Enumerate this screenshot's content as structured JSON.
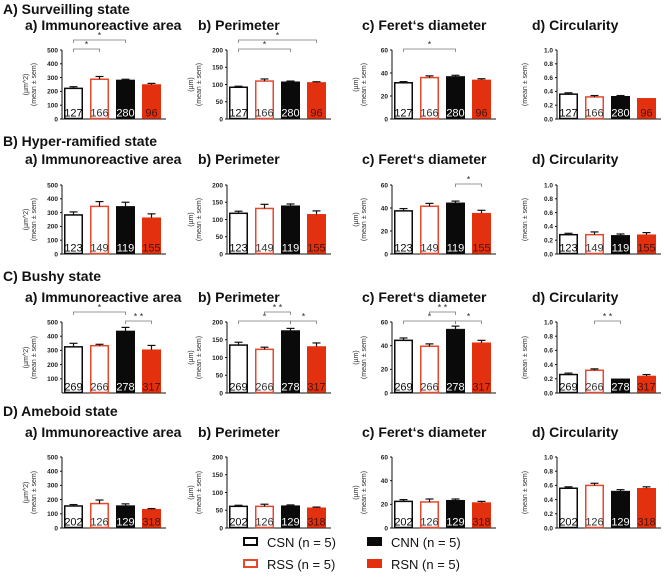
{
  "colors": {
    "black": "#0a0a0a",
    "red": "#e3300f",
    "red_stroke": "#e8472c",
    "white": "#ffffff"
  },
  "groups": [
    "CSN",
    "RSS",
    "CNN",
    "RSN"
  ],
  "legend": [
    {
      "label": "CSN (n = 5)",
      "group": "CSN"
    },
    {
      "label": "RSS (n = 5)",
      "group": "RSS"
    },
    {
      "label": "CNN (n = 5)",
      "group": "CNN"
    },
    {
      "label": "RSN (n = 5)",
      "group": "RSN"
    }
  ],
  "sections": [
    {
      "title": "A) Surveilling state"
    },
    {
      "title": "B) Hyper-ramified state"
    },
    {
      "title": "C) Bushy state"
    },
    {
      "title": "D) Ameboid state"
    }
  ],
  "chart_data": [
    {
      "type": "bar",
      "section": 0,
      "title": "a) Immunoreactive area",
      "ylabel": [
        "(µm^2)",
        "(mean ± sem)"
      ],
      "ylim": [
        0,
        500
      ],
      "ticks": [
        "0",
        "100",
        "200",
        "300",
        "400",
        "500"
      ],
      "values": [
        222,
        288,
        283,
        250
      ],
      "errors": [
        12,
        20,
        5,
        8
      ],
      "n_labels": [
        "127",
        "166",
        "280",
        "96"
      ],
      "significance": [
        {
          "from": 0,
          "to": 1,
          "label": "*",
          "level": 0
        },
        {
          "from": 0,
          "to": 2,
          "label": "*",
          "level": 1
        }
      ]
    },
    {
      "type": "bar",
      "section": 0,
      "title": "b) Perimeter",
      "ylabel": [
        "(µm)",
        "(mean ± sem)"
      ],
      "ylim": [
        0,
        200
      ],
      "ticks": [
        "0",
        "50",
        "100",
        "150",
        "200"
      ],
      "values": [
        92,
        110,
        108,
        106
      ],
      "errors": [
        3,
        6,
        2,
        2
      ],
      "n_labels": [
        "127",
        "166",
        "280",
        "96"
      ],
      "significance": [
        {
          "from": 0,
          "to": 2,
          "label": "*",
          "level": 0
        },
        {
          "from": 0,
          "to": 3,
          "label": "*",
          "level": 1
        }
      ]
    },
    {
      "type": "bar",
      "section": 0,
      "title": "c) Feret‘s diameter",
      "ylabel": [
        "(µm)",
        "(mean ± sem)"
      ],
      "ylim": [
        0,
        60
      ],
      "ticks": [
        "0",
        "20",
        "40",
        "60"
      ],
      "values": [
        31.5,
        36,
        37,
        34
      ],
      "errors": [
        1,
        1.5,
        1,
        1
      ],
      "n_labels": [
        "127",
        "166",
        "280",
        "96"
      ],
      "significance": [
        {
          "from": 0,
          "to": 2,
          "label": "*",
          "level": 0
        }
      ]
    },
    {
      "type": "bar",
      "section": 0,
      "title": "d) Circularity",
      "ylabel": [
        "(mean ± sem)"
      ],
      "ylim": [
        0,
        1
      ],
      "ticks": [
        "0.0",
        "0.2",
        "0.4",
        "0.6",
        "0.8",
        "1.0"
      ],
      "values": [
        0.36,
        0.32,
        0.33,
        0.3
      ],
      "errors": [
        0.02,
        0.02,
        0.01,
        0
      ],
      "n_labels": [
        "127",
        "166",
        "280",
        "96"
      ],
      "significance": []
    },
    {
      "type": "bar",
      "section": 1,
      "title": "a) Immunoreactive area",
      "ylabel": [
        "(µm^2)",
        "(mean ± sem)"
      ],
      "ylim": [
        0,
        500
      ],
      "ticks": [
        "0",
        "100",
        "200",
        "300",
        "400",
        "500"
      ],
      "values": [
        283,
        345,
        345,
        263
      ],
      "errors": [
        22,
        35,
        30,
        28
      ],
      "n_labels": [
        "123",
        "149",
        "119",
        "155"
      ],
      "significance": []
    },
    {
      "type": "bar",
      "section": 1,
      "title": "b) Perimeter",
      "ylabel": [
        "(µm)",
        "(mean ± sem)"
      ],
      "ylim": [
        0,
        200
      ],
      "ticks": [
        "0",
        "50",
        "100",
        "150",
        "200"
      ],
      "values": [
        118,
        132,
        140,
        115
      ],
      "errors": [
        6,
        12,
        5,
        10
      ],
      "n_labels": [
        "123",
        "149",
        "119",
        "155"
      ],
      "significance": []
    },
    {
      "type": "bar",
      "section": 1,
      "title": "c) Feret‘s diameter",
      "ylabel": [
        "(µm)",
        "(mean ± sem)"
      ],
      "ylim": [
        0,
        60
      ],
      "ticks": [
        "0",
        "20",
        "40",
        "60"
      ],
      "values": [
        37.5,
        41.5,
        44.5,
        35.5
      ],
      "errors": [
        2,
        2.5,
        1.5,
        2.5
      ],
      "n_labels": [
        "123",
        "149",
        "119",
        "155"
      ],
      "significance": [
        {
          "from": 2,
          "to": 3,
          "label": "*",
          "level": 0
        }
      ]
    },
    {
      "type": "bar",
      "section": 1,
      "title": "d) Circularity",
      "ylabel": [
        "(mean ± sem)"
      ],
      "ylim": [
        0,
        1
      ],
      "ticks": [
        "0.0",
        "0.2",
        "0.4",
        "0.6",
        "0.8",
        "1.0"
      ],
      "values": [
        0.28,
        0.28,
        0.27,
        0.28
      ],
      "errors": [
        0.02,
        0.04,
        0.02,
        0.03
      ],
      "n_labels": [
        "123",
        "149",
        "119",
        "155"
      ],
      "significance": []
    },
    {
      "type": "bar",
      "section": 2,
      "title": "a) Immunoreactive area",
      "ylabel": [
        "(µm^2)",
        "(mean ± sem)"
      ],
      "ylim": [
        0,
        500
      ],
      "ticks": [
        "100",
        "200",
        "300",
        "400",
        "500"
      ],
      "values": [
        325,
        333,
        437,
        305
      ],
      "errors": [
        25,
        10,
        25,
        30
      ],
      "n_labels": [
        "269",
        "266",
        "278",
        "317"
      ],
      "significance": [
        {
          "from": 0,
          "to": 2,
          "label": "*",
          "level": 1
        },
        {
          "from": 2,
          "to": 3,
          "label": "* *",
          "level": 0
        }
      ]
    },
    {
      "type": "bar",
      "section": 2,
      "title": "b) Perimeter",
      "ylabel": [
        "(µm)",
        "(mean ± sem)"
      ],
      "ylim": [
        0,
        200
      ],
      "ticks": [
        "0",
        "50",
        "100",
        "150",
        "200"
      ],
      "values": [
        135,
        123,
        176,
        131
      ],
      "errors": [
        8,
        6,
        6,
        10
      ],
      "n_labels": [
        "269",
        "266",
        "278",
        "317"
      ],
      "significance": [
        {
          "from": 0,
          "to": 2,
          "label": "*",
          "level": 0
        },
        {
          "from": 1,
          "to": 2,
          "label": "* *",
          "level": 1
        },
        {
          "from": 2,
          "to": 3,
          "label": "*",
          "level": 0
        }
      ]
    },
    {
      "type": "bar",
      "section": 2,
      "title": "c) Feret‘s diameter",
      "ylabel": [
        "(µm)",
        "(mean ± sem)"
      ],
      "ylim": [
        0,
        60
      ],
      "ticks": [
        "0",
        "20",
        "40",
        "60"
      ],
      "values": [
        44.5,
        39.5,
        54,
        42.5
      ],
      "errors": [
        2,
        2,
        2.5,
        2
      ],
      "n_labels": [
        "269",
        "266",
        "278",
        "317"
      ],
      "significance": [
        {
          "from": 0,
          "to": 2,
          "label": "*",
          "level": 0
        },
        {
          "from": 1,
          "to": 2,
          "label": "* *",
          "level": 1
        },
        {
          "from": 2,
          "to": 3,
          "label": "*",
          "level": 0
        }
      ]
    },
    {
      "type": "bar",
      "section": 2,
      "title": "d) Circularity",
      "ylabel": [
        "(mean ± sem)"
      ],
      "ylim": [
        0,
        1
      ],
      "ticks": [
        "0.0",
        "0.2",
        "0.4",
        "0.6",
        "0.8",
        "1.0"
      ],
      "values": [
        0.26,
        0.32,
        0.2,
        0.24
      ],
      "errors": [
        0.02,
        0.02,
        0,
        0.02
      ],
      "n_labels": [
        "269",
        "266",
        "278",
        "317"
      ],
      "significance": [
        {
          "from": 1,
          "to": 2,
          "label": "* *",
          "level": 0
        }
      ]
    },
    {
      "type": "bar",
      "section": 3,
      "title": "a) Immunoreactive area",
      "ylabel": [
        "(µm^2)",
        "(mean ± sem)"
      ],
      "ylim": [
        0,
        500
      ],
      "ticks": [
        "0",
        "100",
        "200",
        "300",
        "400",
        "500"
      ],
      "values": [
        155,
        172,
        158,
        132
      ],
      "errors": [
        10,
        25,
        12,
        5
      ],
      "n_labels": [
        "202",
        "126",
        "129",
        "318"
      ],
      "significance": []
    },
    {
      "type": "bar",
      "section": 3,
      "title": "b) Perimeter",
      "ylabel": [
        "(µm)",
        "(mean ± sem)"
      ],
      "ylim": [
        0,
        200
      ],
      "ticks": [
        "0",
        "50",
        "100",
        "150",
        "200"
      ],
      "values": [
        61,
        61,
        63,
        57
      ],
      "errors": [
        3,
        6,
        2,
        2
      ],
      "n_labels": [
        "202",
        "126",
        "129",
        "318"
      ],
      "significance": []
    },
    {
      "type": "bar",
      "section": 3,
      "title": "c) Feret‘s diameter",
      "ylabel": [
        "(µm)",
        "(mean ± sem)"
      ],
      "ylim": [
        0,
        60
      ],
      "ticks": [
        "0",
        "20",
        "40",
        "60"
      ],
      "values": [
        22.5,
        22,
        23.5,
        21.5
      ],
      "errors": [
        1.5,
        2.5,
        1,
        1
      ],
      "n_labels": [
        "202",
        "126",
        "129",
        "318"
      ],
      "significance": []
    },
    {
      "type": "bar",
      "section": 3,
      "title": "d) Circularity",
      "ylabel": [
        "(mean ± sem)"
      ],
      "ylim": [
        0,
        1
      ],
      "ticks": [
        "0.0",
        "0.2",
        "0.4",
        "0.6",
        "0.8",
        "1.0"
      ],
      "values": [
        0.56,
        0.6,
        0.52,
        0.56
      ],
      "errors": [
        0.02,
        0.03,
        0.02,
        0.02
      ],
      "n_labels": [
        "202",
        "126",
        "129",
        "318"
      ],
      "significance": []
    }
  ]
}
